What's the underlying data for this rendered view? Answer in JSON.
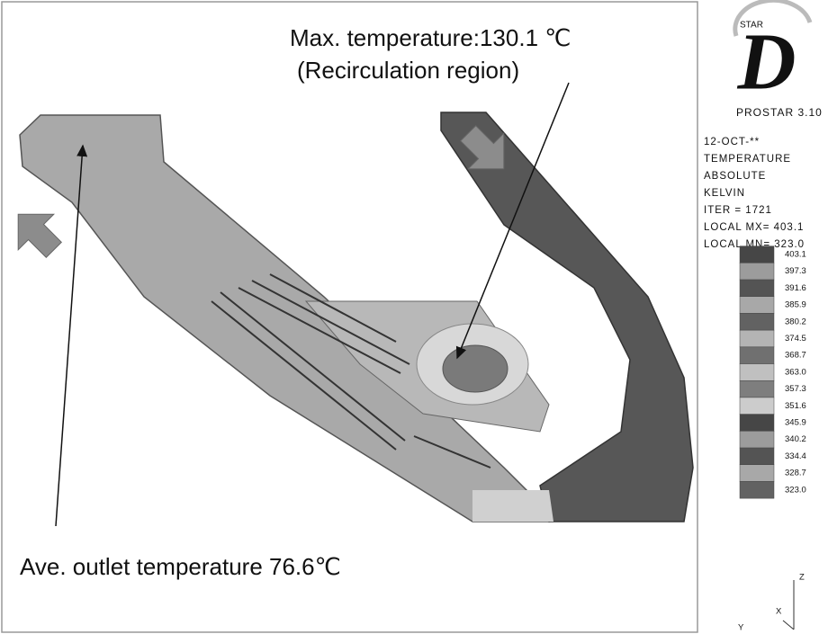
{
  "annotations": {
    "max_temperature": "Max. temperature:130.1 ℃",
    "region": "(Recirculation region)",
    "outlet": "Ave. outlet temperature 76.6℃"
  },
  "logo": {
    "star": "STAR",
    "letter": "D",
    "version": "PROSTAR 3.10"
  },
  "info": [
    "12-OCT-**",
    "TEMPERATURE",
    "ABSOLUTE",
    "KELVIN",
    "ITER =   1721",
    "LOCAL MX=  403.1",
    "LOCAL MN=  323.0"
  ],
  "legend": {
    "values": [
      "403.1",
      "397.3",
      "391.6",
      "385.9",
      "380.2",
      "374.5",
      "368.7",
      "363.0",
      "357.3",
      "351.6",
      "345.9",
      "340.2",
      "334.4",
      "328.7",
      "323.0"
    ]
  },
  "axes": {
    "z": "Z",
    "x": "X",
    "y": "Y"
  }
}
